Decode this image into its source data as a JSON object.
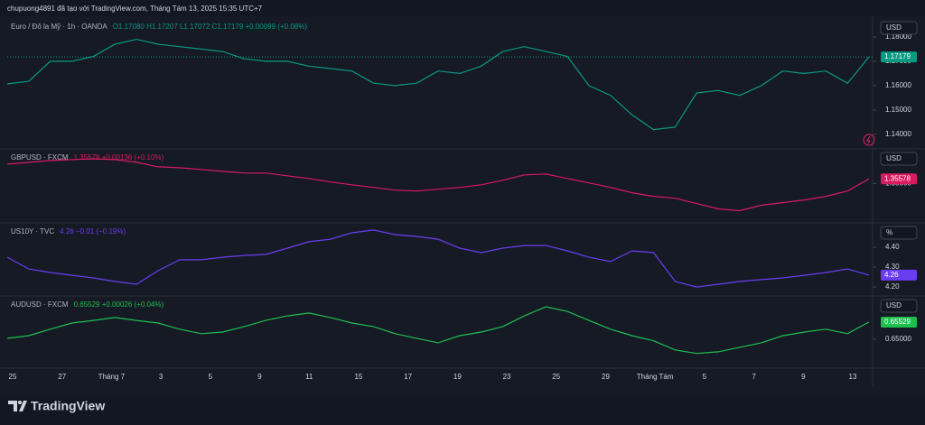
{
  "header": "chupuong4891 đã tạo với TradingView.com, Tháng Tám 13, 2025 15:35 UTC+7",
  "chart_data": [
    {
      "type": "line",
      "legend_title": "Euro / Đô la Mỹ · 1h · OANDA",
      "legend_values": "O1.17080  H1.17207  L1.17072  C1.17179  +0.00099 (+0.08%)",
      "unit": "USD",
      "color": "#089981",
      "price_line": true,
      "ylim": [
        1.1348,
        1.187
      ],
      "yticks": [
        {
          "value": 1.14,
          "label": "1.14000"
        },
        {
          "value": 1.15,
          "label": "1.15000"
        },
        {
          "value": 1.16,
          "label": "1.16000"
        },
        {
          "value": 1.17,
          "label": "1.17000"
        },
        {
          "value": 1.18,
          "label": "1.18000"
        }
      ],
      "values": [
        1.1607,
        1.1618,
        1.17,
        1.17,
        1.172,
        1.177,
        1.179,
        1.177,
        1.176,
        1.175,
        1.174,
        1.171,
        1.17,
        1.17,
        1.168,
        1.167,
        1.166,
        1.161,
        1.16,
        1.161,
        1.166,
        1.165,
        1.168,
        1.174,
        1.176,
        1.174,
        1.172,
        1.16,
        1.156,
        1.148,
        1.142,
        1.143,
        1.157,
        1.158,
        1.156,
        1.16,
        1.166,
        1.165,
        1.166,
        1.161,
        1.17179
      ]
    },
    {
      "type": "line",
      "legend_title": "GBPUSD · FXCM",
      "legend_values": "1.35578  +0.00136 (+0.10%)",
      "unit": "USD",
      "color": "#d81b60",
      "price_line": false,
      "ylim": [
        1.303,
        1.391
      ],
      "yticks": [
        {
          "value": 1.35,
          "label": "1.35000"
        }
      ],
      "values": [
        1.3742,
        1.3764,
        1.3787,
        1.3798,
        1.3809,
        1.3798,
        1.3764,
        1.3708,
        1.3697,
        1.3675,
        1.3652,
        1.363,
        1.363,
        1.3596,
        1.3563,
        1.3518,
        1.3484,
        1.3451,
        1.3417,
        1.3406,
        1.3428,
        1.3451,
        1.3484,
        1.354,
        1.3608,
        1.3619,
        1.3563,
        1.3507,
        1.3451,
        1.3384,
        1.3339,
        1.3316,
        1.3249,
        1.3182,
        1.316,
        1.3227,
        1.326,
        1.3294,
        1.3339,
        1.3406,
        1.35578
      ]
    },
    {
      "type": "line",
      "legend_title": "US10Y · TVC",
      "legend_values": "4.26  −0.01 (−0.19%)",
      "unit": "%",
      "color": "#6a3df0",
      "price_line": false,
      "ylim": [
        4.164,
        4.514
      ],
      "yticks": [
        {
          "value": 4.2,
          "label": "4.20"
        },
        {
          "value": 4.3,
          "label": "4.30"
        },
        {
          "value": 4.4,
          "label": "4.40"
        }
      ],
      "values": [
        4.35,
        4.291,
        4.273,
        4.259,
        4.246,
        4.228,
        4.214,
        4.282,
        4.337,
        4.337,
        4.35,
        4.359,
        4.364,
        4.396,
        4.428,
        4.441,
        4.473,
        4.487,
        4.464,
        4.455,
        4.441,
        4.396,
        4.373,
        4.396,
        4.409,
        4.409,
        4.382,
        4.35,
        4.328,
        4.382,
        4.373,
        4.228,
        4.2,
        4.214,
        4.228,
        4.237,
        4.246,
        4.259,
        4.273,
        4.291,
        4.26
      ]
    },
    {
      "type": "line",
      "legend_title": "AUDUSD · FXCM",
      "legend_values": "0.65529  +0.00026 (+0.04%)",
      "unit": "USD",
      "color": "#1fbf4f",
      "price_line": false,
      "ylim": [
        0.6419,
        0.6628
      ],
      "yticks": [
        {
          "value": 0.65,
          "label": "0.65000"
        }
      ],
      "values": [
        0.6503,
        0.6511,
        0.6531,
        0.655,
        0.6558,
        0.6567,
        0.6558,
        0.655,
        0.6531,
        0.6517,
        0.6522,
        0.6539,
        0.6558,
        0.6572,
        0.6581,
        0.6567,
        0.655,
        0.6539,
        0.6517,
        0.6503,
        0.6489,
        0.6511,
        0.6522,
        0.6539,
        0.6572,
        0.66,
        0.6586,
        0.6558,
        0.6531,
        0.6511,
        0.6495,
        0.6467,
        0.6456,
        0.6461,
        0.6475,
        0.6489,
        0.6511,
        0.6522,
        0.6531,
        0.6517,
        0.65529
      ]
    }
  ],
  "time_axis": [
    "25",
    "27",
    "Tháng 7",
    "3",
    "5",
    "9",
    "11",
    "15",
    "17",
    "19",
    "23",
    "25",
    "29",
    "Tháng Tám",
    "5",
    "7",
    "9",
    "13"
  ],
  "footer": {
    "brand": "TradingView"
  }
}
